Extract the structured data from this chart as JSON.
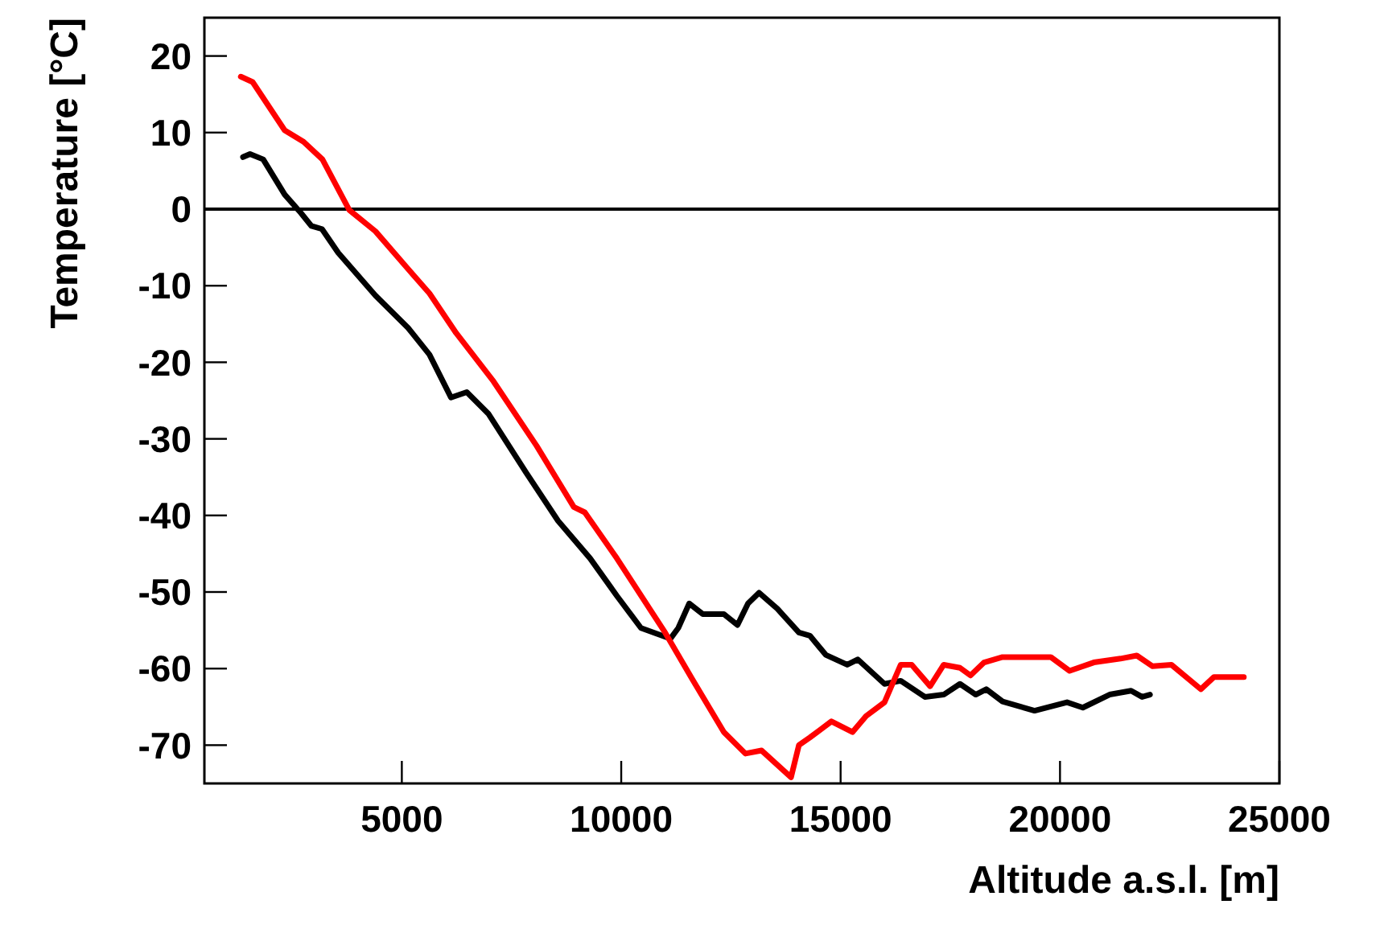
{
  "chart_data": {
    "type": "line",
    "xlabel": "Altitude a.s.l. [m]",
    "ylabel": "Temperature [°C]",
    "xlim": [
      500,
      25000
    ],
    "xticks": [
      5000,
      10000,
      15000,
      20000,
      25000
    ],
    "ylim": [
      -75,
      25
    ],
    "yticks": [
      -70,
      -60,
      -50,
      -40,
      -30,
      -20,
      -10,
      0,
      10,
      20
    ],
    "ref_lines": [
      {
        "axis": "y",
        "value": 0,
        "color": "#000000"
      }
    ],
    "series": [
      {
        "color": "#000000",
        "x": [
          1380,
          1540,
          1840,
          2330,
          2700,
          2940,
          3180,
          3550,
          4400,
          5140,
          5630,
          6120,
          6480,
          6970,
          7830,
          8560,
          9290,
          9900,
          10450,
          11120,
          11300,
          11550,
          11860,
          12340,
          12650,
          12890,
          13140,
          13560,
          14050,
          14300,
          14660,
          15150,
          15390,
          16000,
          16370,
          16920,
          17350,
          17720,
          18080,
          18320,
          18690,
          19420,
          20160,
          20520,
          21130,
          21620,
          21870,
          22050
        ],
        "values": [
          6.8,
          7.2,
          6.5,
          1.9,
          -0.5,
          -2.2,
          -2.6,
          -5.7,
          -11.3,
          -15.5,
          -19,
          -24.6,
          -23.9,
          -26.7,
          -34.4,
          -40.7,
          -45.6,
          -50.5,
          -54.7,
          -56.1,
          -54.7,
          -51.5,
          -52.9,
          -52.9,
          -54.3,
          -51.5,
          -50.1,
          -52.2,
          -55.3,
          -55.7,
          -58.2,
          -59.5,
          -58.8,
          -62,
          -61.6,
          -63.7,
          -63.4,
          -62,
          -63.4,
          -62.7,
          -64.3,
          -65.5,
          -64.4,
          -65.1,
          -63.4,
          -62.9,
          -63.7,
          -63.4
        ]
      },
      {
        "color": "#ff0000",
        "x": [
          1330,
          1600,
          2330,
          2760,
          3190,
          3800,
          4400,
          5140,
          5630,
          6240,
          7090,
          8070,
          8920,
          9170,
          9900,
          11000,
          11610,
          12340,
          12830,
          13200,
          13870,
          14050,
          14300,
          14790,
          15270,
          15580,
          16000,
          16370,
          16620,
          17040,
          17350,
          17720,
          17960,
          18270,
          18690,
          19180,
          19790,
          20220,
          20770,
          21380,
          21750,
          22110,
          22540,
          23210,
          23510,
          24190
        ],
        "values": [
          17.3,
          16.6,
          10.3,
          8.8,
          6.5,
          -0.1,
          -2.9,
          -7.8,
          -11,
          -16.2,
          -22.5,
          -30.9,
          -38.9,
          -39.6,
          -45.6,
          -55.3,
          -61.3,
          -68.3,
          -71.1,
          -70.7,
          -74.2,
          -70,
          -69,
          -66.9,
          -68.3,
          -66.2,
          -64.4,
          -59.5,
          -59.5,
          -62.3,
          -59.5,
          -59.9,
          -60.9,
          -59.2,
          -58.5,
          -58.5,
          -58.5,
          -60.3,
          -59.2,
          -58.7,
          -58.3,
          -59.7,
          -59.5,
          -62.7,
          -61.1,
          -61.1
        ]
      }
    ]
  }
}
